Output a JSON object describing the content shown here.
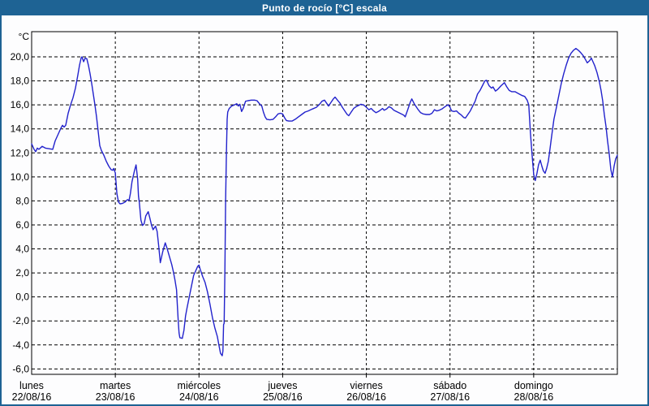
{
  "window": {
    "title": "Punto de rocío [°C] escala",
    "colors": {
      "title_bar": "#1E6394",
      "title_text": "#FFFFFF",
      "border": "#1E6394",
      "background": "#FDFDFE",
      "plot_frame": "#000000",
      "gridline": "#000000"
    }
  },
  "chart_data": {
    "type": "line",
    "title": "Punto de rocío [°C] escala",
    "ylabel": "°C",
    "unit_label": "°C",
    "series_name": "Punto de rocío",
    "line_color": "#2222CC",
    "grid": "dashed",
    "legend": "none",
    "ylim": [
      -6.45,
      22.1
    ],
    "yticks": [
      20,
      18,
      16,
      14,
      12,
      10,
      8,
      6,
      4,
      2,
      0,
      -2,
      -4,
      -6
    ],
    "ytick_labels": [
      "20,0",
      "18,0",
      "16,0",
      "14,0",
      "12,0",
      "10,0",
      "8,0",
      "6,0",
      "4,0",
      "2,0",
      "0,0",
      "-2,0",
      "-4,0",
      "-6,0"
    ],
    "x_axis": {
      "xlim_days": [
        0,
        7
      ],
      "categories": [
        {
          "day": "lunes",
          "date": "22/08/16"
        },
        {
          "day": "martes",
          "date": "23/08/16"
        },
        {
          "day": "miércoles",
          "date": "24/08/16"
        },
        {
          "day": "jueves",
          "date": "25/08/16"
        },
        {
          "day": "viernes",
          "date": "26/08/16"
        },
        {
          "day": "sábado",
          "date": "27/08/16"
        },
        {
          "day": "domingo",
          "date": "28/08/16"
        }
      ]
    },
    "points": [
      [
        0.0,
        12.75
      ],
      [
        0.029,
        12.3
      ],
      [
        0.048,
        12.1
      ],
      [
        0.068,
        12.4
      ],
      [
        0.087,
        12.3
      ],
      [
        0.126,
        12.55
      ],
      [
        0.165,
        12.4
      ],
      [
        0.204,
        12.35
      ],
      [
        0.252,
        12.3
      ],
      [
        0.281,
        13.0
      ],
      [
        0.32,
        13.6
      ],
      [
        0.349,
        14.05
      ],
      [
        0.368,
        14.3
      ],
      [
        0.388,
        14.15
      ],
      [
        0.407,
        14.3
      ],
      [
        0.436,
        15.3
      ],
      [
        0.465,
        16.0
      ],
      [
        0.494,
        16.6
      ],
      [
        0.524,
        17.4
      ],
      [
        0.553,
        18.5
      ],
      [
        0.572,
        19.3
      ],
      [
        0.591,
        19.9
      ],
      [
        0.601,
        20.0
      ],
      [
        0.621,
        19.6
      ],
      [
        0.64,
        19.9
      ],
      [
        0.659,
        19.85
      ],
      [
        0.679,
        19.3
      ],
      [
        0.698,
        18.6
      ],
      [
        0.717,
        17.8
      ],
      [
        0.737,
        16.9
      ],
      [
        0.756,
        16.0
      ],
      [
        0.776,
        15.0
      ],
      [
        0.795,
        13.8
      ],
      [
        0.814,
        12.6
      ],
      [
        0.834,
        12.2
      ],
      [
        0.863,
        11.8
      ],
      [
        0.892,
        11.3
      ],
      [
        0.921,
        10.9
      ],
      [
        0.95,
        10.6
      ],
      [
        0.97,
        10.55
      ],
      [
        0.98,
        10.7
      ],
      [
        1.0,
        10.35
      ],
      [
        1.019,
        8.6
      ],
      [
        1.038,
        7.9
      ],
      [
        1.058,
        7.75
      ],
      [
        1.087,
        7.8
      ],
      [
        1.116,
        7.9
      ],
      [
        1.145,
        8.1
      ],
      [
        1.164,
        8.05
      ],
      [
        1.18,
        8.6
      ],
      [
        1.199,
        9.6
      ],
      [
        1.228,
        10.5
      ],
      [
        1.248,
        11.0
      ],
      [
        1.267,
        9.8
      ],
      [
        1.277,
        8.4
      ],
      [
        1.287,
        7.9
      ],
      [
        1.306,
        6.4
      ],
      [
        1.325,
        5.95
      ],
      [
        1.345,
        6.1
      ],
      [
        1.364,
        6.75
      ],
      [
        1.393,
        7.1
      ],
      [
        1.412,
        6.6
      ],
      [
        1.432,
        6.0
      ],
      [
        1.451,
        5.6
      ],
      [
        1.48,
        5.9
      ],
      [
        1.5,
        5.45
      ],
      [
        1.519,
        4.2
      ],
      [
        1.538,
        2.85
      ],
      [
        1.568,
        3.8
      ],
      [
        1.597,
        4.5
      ],
      [
        1.616,
        4.1
      ],
      [
        1.645,
        3.4
      ],
      [
        1.674,
        2.7
      ],
      [
        1.694,
        2.1
      ],
      [
        1.713,
        1.4
      ],
      [
        1.732,
        0.6
      ],
      [
        1.742,
        -0.8
      ],
      [
        1.752,
        -2.0
      ],
      [
        1.762,
        -3.0
      ],
      [
        1.771,
        -3.4
      ],
      [
        1.8,
        -3.45
      ],
      [
        1.82,
        -2.8
      ],
      [
        1.839,
        -1.6
      ],
      [
        1.858,
        -0.9
      ],
      [
        1.878,
        -0.2
      ],
      [
        1.907,
        0.8
      ],
      [
        1.936,
        1.8
      ],
      [
        1.985,
        2.55
      ],
      [
        2.0,
        2.65
      ],
      [
        2.015,
        2.3
      ],
      [
        2.044,
        1.7
      ],
      [
        2.073,
        1.2
      ],
      [
        2.102,
        0.4
      ],
      [
        2.131,
        -0.6
      ],
      [
        2.16,
        -1.7
      ],
      [
        2.19,
        -2.6
      ],
      [
        2.219,
        -3.3
      ],
      [
        2.238,
        -4.0
      ],
      [
        2.257,
        -4.7
      ],
      [
        2.277,
        -4.9
      ],
      [
        2.286,
        -4.5
      ],
      [
        2.294,
        -2.3
      ],
      [
        2.301,
        -2.2
      ],
      [
        2.309,
        2.0
      ],
      [
        2.318,
        8.0
      ],
      [
        2.328,
        12.0
      ],
      [
        2.337,
        14.8
      ],
      [
        2.343,
        15.4
      ],
      [
        2.361,
        15.7
      ],
      [
        2.39,
        15.9
      ],
      [
        2.422,
        16.0
      ],
      [
        2.451,
        16.1
      ],
      [
        2.47,
        15.9
      ],
      [
        2.489,
        16.05
      ],
      [
        2.509,
        15.45
      ],
      [
        2.528,
        15.7
      ],
      [
        2.557,
        16.3
      ],
      [
        2.586,
        16.35
      ],
      [
        2.625,
        16.4
      ],
      [
        2.664,
        16.4
      ],
      [
        2.693,
        16.35
      ],
      [
        2.722,
        16.1
      ],
      [
        2.751,
        15.9
      ],
      [
        2.77,
        15.4
      ],
      [
        2.79,
        15.0
      ],
      [
        2.809,
        14.8
      ],
      [
        2.848,
        14.75
      ],
      [
        2.886,
        14.8
      ],
      [
        2.915,
        15.0
      ],
      [
        2.944,
        15.25
      ],
      [
        2.973,
        15.3
      ],
      [
        3.0,
        15.25
      ],
      [
        3.025,
        14.9
      ],
      [
        3.044,
        14.7
      ],
      [
        3.073,
        14.65
      ],
      [
        3.112,
        14.65
      ],
      [
        3.15,
        14.8
      ],
      [
        3.189,
        15.0
      ],
      [
        3.228,
        15.2
      ],
      [
        3.267,
        15.4
      ],
      [
        3.306,
        15.5
      ],
      [
        3.354,
        15.65
      ],
      [
        3.403,
        15.8
      ],
      [
        3.441,
        16.05
      ],
      [
        3.47,
        16.3
      ],
      [
        3.5,
        16.4
      ],
      [
        3.529,
        16.1
      ],
      [
        3.548,
        15.9
      ],
      [
        3.577,
        16.2
      ],
      [
        3.606,
        16.5
      ],
      [
        3.626,
        16.65
      ],
      [
        3.655,
        16.4
      ],
      [
        3.684,
        16.15
      ],
      [
        3.713,
        15.8
      ],
      [
        3.742,
        15.5
      ],
      [
        3.771,
        15.2
      ],
      [
        3.79,
        15.1
      ],
      [
        3.819,
        15.4
      ],
      [
        3.848,
        15.7
      ],
      [
        3.877,
        15.85
      ],
      [
        3.906,
        15.95
      ],
      [
        3.935,
        16.05
      ],
      [
        3.965,
        16.0
      ],
      [
        3.984,
        15.9
      ],
      [
        4.0,
        15.8
      ],
      [
        4.029,
        15.6
      ],
      [
        4.058,
        15.7
      ],
      [
        4.087,
        15.5
      ],
      [
        4.116,
        15.35
      ],
      [
        4.145,
        15.45
      ],
      [
        4.175,
        15.6
      ],
      [
        4.194,
        15.7
      ],
      [
        4.213,
        15.55
      ],
      [
        4.242,
        15.65
      ],
      [
        4.271,
        15.85
      ],
      [
        4.3,
        15.75
      ],
      [
        4.329,
        15.55
      ],
      [
        4.358,
        15.45
      ],
      [
        4.388,
        15.35
      ],
      [
        4.417,
        15.25
      ],
      [
        4.446,
        15.15
      ],
      [
        4.465,
        15.0
      ],
      [
        4.495,
        15.6
      ],
      [
        4.524,
        16.2
      ],
      [
        4.543,
        16.5
      ],
      [
        4.572,
        16.1
      ],
      [
        4.591,
        15.9
      ],
      [
        4.62,
        15.6
      ],
      [
        4.649,
        15.35
      ],
      [
        4.678,
        15.25
      ],
      [
        4.717,
        15.2
      ],
      [
        4.756,
        15.2
      ],
      [
        4.785,
        15.3
      ],
      [
        4.814,
        15.6
      ],
      [
        4.843,
        15.5
      ],
      [
        4.872,
        15.55
      ],
      [
        4.902,
        15.65
      ],
      [
        4.931,
        15.8
      ],
      [
        4.96,
        15.95
      ],
      [
        4.98,
        16.0
      ],
      [
        5.0,
        15.8
      ],
      [
        5.019,
        15.5
      ],
      [
        5.048,
        15.45
      ],
      [
        5.077,
        15.5
      ],
      [
        5.106,
        15.3
      ],
      [
        5.136,
        15.15
      ],
      [
        5.165,
        14.95
      ],
      [
        5.184,
        14.9
      ],
      [
        5.213,
        15.2
      ],
      [
        5.242,
        15.5
      ],
      [
        5.271,
        15.9
      ],
      [
        5.3,
        16.3
      ],
      [
        5.329,
        16.9
      ],
      [
        5.359,
        17.2
      ],
      [
        5.388,
        17.6
      ],
      [
        5.417,
        18.0
      ],
      [
        5.437,
        18.05
      ],
      [
        5.466,
        17.6
      ],
      [
        5.495,
        17.4
      ],
      [
        5.514,
        17.5
      ],
      [
        5.543,
        17.15
      ],
      [
        5.572,
        17.3
      ],
      [
        5.611,
        17.6
      ],
      [
        5.65,
        17.85
      ],
      [
        5.679,
        17.5
      ],
      [
        5.708,
        17.2
      ],
      [
        5.737,
        17.1
      ],
      [
        5.776,
        17.1
      ],
      [
        5.815,
        16.95
      ],
      [
        5.854,
        16.8
      ],
      [
        5.893,
        16.7
      ],
      [
        5.922,
        16.4
      ],
      [
        5.941,
        16.0
      ],
      [
        5.961,
        13.7
      ],
      [
        5.98,
        11.9
      ],
      [
        6.0,
        10.2
      ],
      [
        6.019,
        9.7
      ],
      [
        6.039,
        10.3
      ],
      [
        6.058,
        11.0
      ],
      [
        6.078,
        11.4
      ],
      [
        6.097,
        10.9
      ],
      [
        6.116,
        10.5
      ],
      [
        6.136,
        10.3
      ],
      [
        6.155,
        10.7
      ],
      [
        6.175,
        11.3
      ],
      [
        6.194,
        12.3
      ],
      [
        6.213,
        13.3
      ],
      [
        6.242,
        14.8
      ],
      [
        6.272,
        15.8
      ],
      [
        6.301,
        16.8
      ],
      [
        6.33,
        17.8
      ],
      [
        6.359,
        18.6
      ],
      [
        6.388,
        19.3
      ],
      [
        6.417,
        19.9
      ],
      [
        6.446,
        20.3
      ],
      [
        6.475,
        20.55
      ],
      [
        6.505,
        20.7
      ],
      [
        6.534,
        20.55
      ],
      [
        6.563,
        20.35
      ],
      [
        6.592,
        20.1
      ],
      [
        6.621,
        19.75
      ],
      [
        6.64,
        19.5
      ],
      [
        6.67,
        19.7
      ],
      [
        6.689,
        19.9
      ],
      [
        6.708,
        19.6
      ],
      [
        6.728,
        19.3
      ],
      [
        6.757,
        18.7
      ],
      [
        6.786,
        17.9
      ],
      [
        6.805,
        17.2
      ],
      [
        6.825,
        16.3
      ],
      [
        6.844,
        15.2
      ],
      [
        6.864,
        14.2
      ],
      [
        6.883,
        13.0
      ],
      [
        6.903,
        11.9
      ],
      [
        6.922,
        10.6
      ],
      [
        6.941,
        10.0
      ],
      [
        6.961,
        10.9
      ],
      [
        6.98,
        11.5
      ],
      [
        7.0,
        11.8
      ]
    ]
  }
}
